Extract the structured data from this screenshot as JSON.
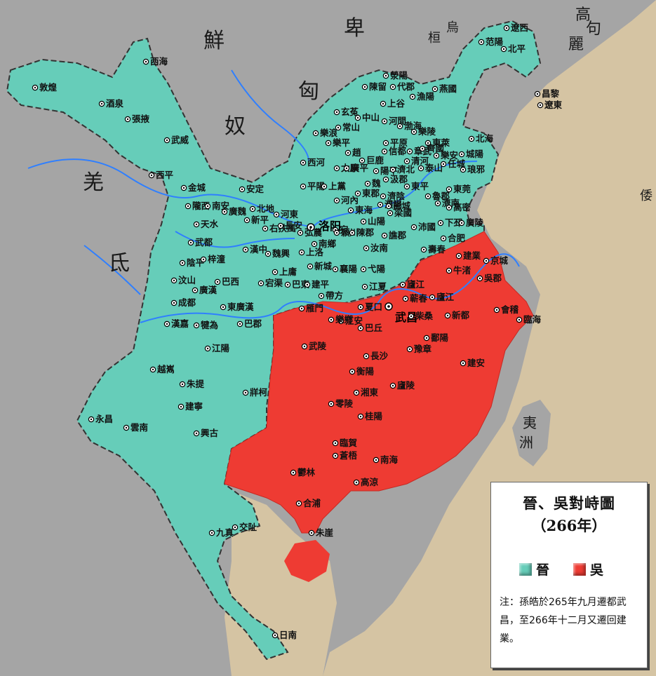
{
  "legend": {
    "title": "晉、吳對峙圖",
    "year": "（266年）",
    "jin_label": "晉",
    "wu_label": "吳",
    "note": "注：孫皓於265年九月遷都武昌，至266年十二月又遷回建業。"
  },
  "colors": {
    "jin": "#66cdb9",
    "wu": "#ee3b33",
    "land": "#a5a5a5",
    "sea": "#d5c4a3",
    "river": "#2f7fff"
  },
  "regions": [
    "鮮",
    "卑",
    "烏",
    "桓",
    "高",
    "句",
    "麗",
    "匈",
    "奴",
    "羌",
    "氐",
    "倭"
  ],
  "islands": [
    "夷",
    "洲"
  ],
  "capitals": {
    "jin": "洛阳",
    "wu": "武昌"
  },
  "jin_cities": [
    "敦煌",
    "酒泉",
    "張掖",
    "西海",
    "武威",
    "西平",
    "金城",
    "隴西",
    "南安",
    "廣魏",
    "天水",
    "武都",
    "陰平",
    "汶山",
    "梓潼",
    "廣漢",
    "巴西",
    "成都",
    "漢嘉",
    "犍為",
    "東廣漢",
    "巴郡",
    "江陽",
    "越嶲",
    "朱提",
    "牂柯",
    "建寧",
    "永昌",
    "雲南",
    "興古",
    "交阯",
    "九真",
    "日南",
    "安定",
    "北地",
    "新平",
    "右扶風",
    "長安",
    "弘農",
    "上洛",
    "魏興",
    "上庸",
    "漢中",
    "宕渠",
    "巴東",
    "建平",
    "新城",
    "南鄉",
    "襄陽",
    "宛",
    "江夏",
    "弋陽",
    "汝南",
    "穎川",
    "陳郡",
    "譙郡",
    "梁國",
    "沛國",
    "下邳",
    "廣陵",
    "廬江",
    "壽春",
    "合肥",
    "河東",
    "平陽",
    "上黨",
    "河內",
    "太原",
    "西河",
    "樂平",
    "常山",
    "中山",
    "河間",
    "渤海",
    "章武",
    "樂陵",
    "信都",
    "平原",
    "清河",
    "巨鹿",
    "趙",
    "廣平",
    "陽平",
    "魏",
    "汲郡",
    "東郡",
    "濮陽",
    "濟陰",
    "濟北",
    "泰山",
    "東平",
    "魯郡",
    "任城",
    "東莞",
    "琅邪",
    "城陽",
    "北海",
    "東萊",
    "齊國",
    "樂安",
    "濟南",
    "高密",
    "彭城",
    "東海",
    "山陽",
    "陳留",
    "滎陽",
    "代郡",
    "上谷",
    "漁陽",
    "燕國",
    "范陽",
    "北平",
    "遼西",
    "昌黎",
    "遼東",
    "玄菟",
    "樂浪",
    "帶方",
    "雁門",
    "新興",
    "西陵",
    "宜都"
  ],
  "wu_cities": [
    "建業",
    "京城",
    "吳郡",
    "會稽",
    "臨海",
    "牛渚",
    "廬江",
    "蕲春",
    "柴桑",
    "新都",
    "鄱陽",
    "豫章",
    "建安",
    "夏口",
    "江安",
    "巴丘",
    "樂鄉",
    "武陵",
    "長沙",
    "衡陽",
    "湘東",
    "廬陵",
    "零陵",
    "桂陽",
    "臨賀",
    "蒼梧",
    "鬱林",
    "南海",
    "高涼",
    "合浦",
    "朱崖"
  ]
}
